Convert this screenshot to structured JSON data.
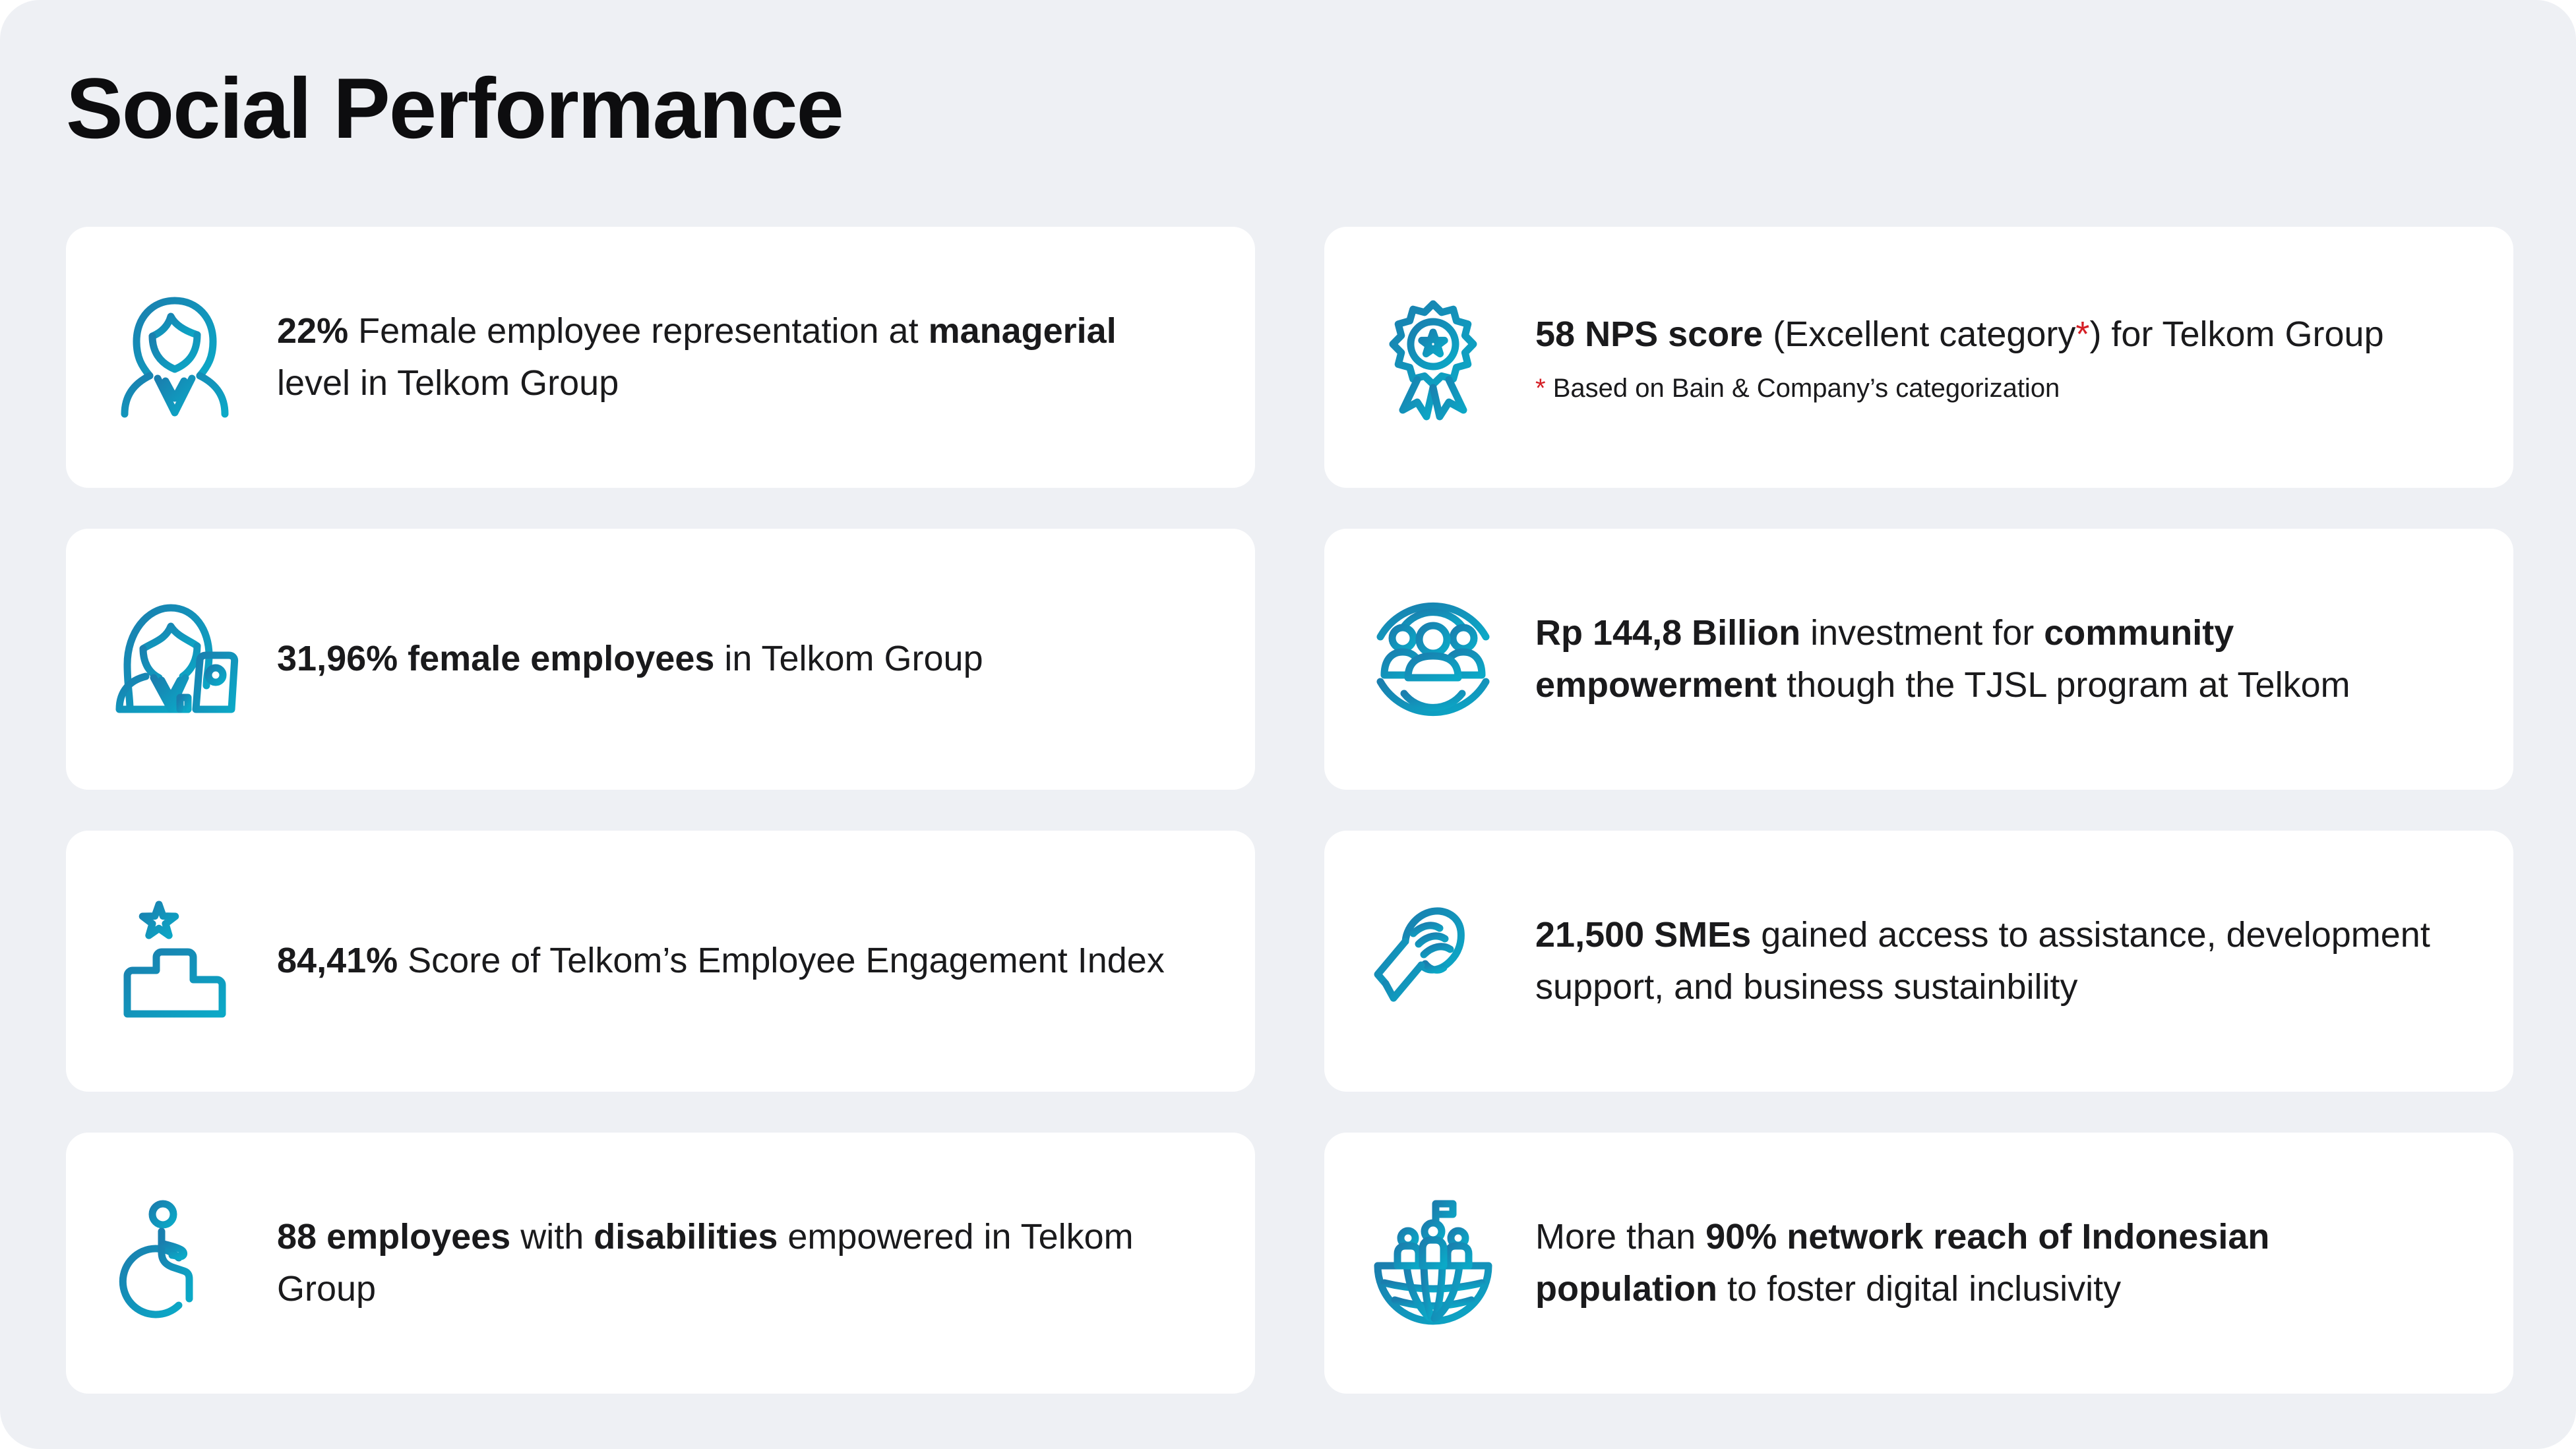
{
  "page": {
    "title": "Social Performance"
  },
  "theme": {
    "background": "#eef0f4",
    "card": "#ffffff",
    "text": "#1a1a1c",
    "accent_start": "#1a7eae",
    "accent_end": "#0ba9c7",
    "footnote_red": "#d51f26"
  },
  "cards": [
    {
      "id": "female-managerial",
      "icon": "businesswoman-icon",
      "segments": [
        {
          "t": "22%",
          "b": true
        },
        {
          "t": " Female employee representation at ",
          "b": false
        },
        {
          "t": "managerial",
          "b": true
        },
        {
          "t": " level in Telkom Group",
          "b": false
        }
      ]
    },
    {
      "id": "nps-score",
      "icon": "award-ribbon-icon",
      "segments": [
        {
          "t": "58 NPS score",
          "b": true
        },
        {
          "t": " (Excellent category",
          "b": false
        },
        {
          "t": "*",
          "b": false,
          "red": true
        },
        {
          "t": ") for Telkom Group",
          "b": false
        }
      ],
      "footnote": [
        {
          "t": "*",
          "b": false,
          "red": true
        },
        {
          "t": " Based on Bain & Company’s categorization",
          "b": false
        }
      ]
    },
    {
      "id": "female-employees",
      "icon": "woman-laptop-icon",
      "segments": [
        {
          "t": "31,96% female employees",
          "b": true
        },
        {
          "t": " in Telkom Group",
          "b": false
        }
      ]
    },
    {
      "id": "community-investment",
      "icon": "community-people-icon",
      "segments": [
        {
          "t": "Rp 144,8 Billion",
          "b": true
        },
        {
          "t": " investment for ",
          "b": false
        },
        {
          "t": "community empowerment",
          "b": true
        },
        {
          "t": " though the TJSL program at Telkom",
          "b": false
        }
      ]
    },
    {
      "id": "engagement-index",
      "icon": "podium-star-icon",
      "segments": [
        {
          "t": "84,41%",
          "b": true
        },
        {
          "t": " Score of Telkom’s Employee Engagement Index",
          "b": false
        }
      ]
    },
    {
      "id": "smes-assistance",
      "icon": "handshake-icon",
      "segments": [
        {
          "t": "21,500 SMEs",
          "b": true
        },
        {
          "t": " gained access to assistance, development support, and business sustainbility",
          "b": false
        }
      ]
    },
    {
      "id": "employees-disabilities",
      "icon": "wheelchair-icon",
      "segments": [
        {
          "t": "88 employees",
          "b": true
        },
        {
          "t": " with ",
          "b": false
        },
        {
          "t": "disabilities",
          "b": true
        },
        {
          "t": " empowered in Telkom Group",
          "b": false
        }
      ]
    },
    {
      "id": "network-reach",
      "icon": "globe-flag-icon",
      "segments": [
        {
          "t": "More than ",
          "b": false
        },
        {
          "t": "90% network reach of Indonesian population",
          "b": true
        },
        {
          "t": " to foster digital inclusivity",
          "b": false
        }
      ]
    }
  ]
}
